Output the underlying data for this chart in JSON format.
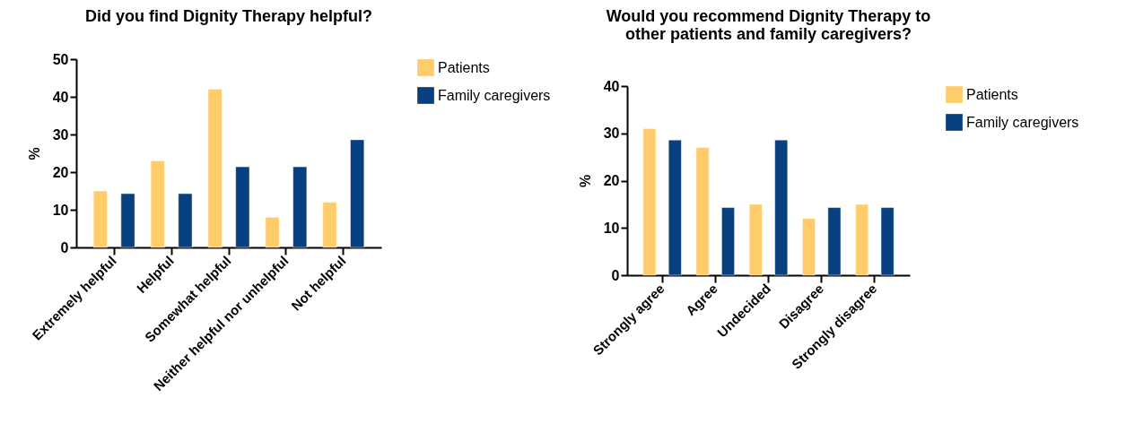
{
  "chart_data": [
    {
      "type": "bar",
      "title": "Did you find Dignity Therapy helpful?",
      "ylabel": "%",
      "categories": [
        "Extremely helpful",
        "Helpful",
        "Somewhat helpful",
        "Neither helpful nor unhelpful",
        "Not helpful"
      ],
      "series": [
        {
          "name": "Patients",
          "color": "#fecc6b",
          "values": [
            15,
            23,
            42,
            8,
            12
          ]
        },
        {
          "name": "Family caregivers",
          "color": "#083f7f",
          "values": [
            14.3,
            14.3,
            21.4,
            21.4,
            28.6
          ]
        }
      ],
      "ylim": [
        0,
        50
      ],
      "yticks": [
        0,
        10,
        20,
        30,
        40,
        50
      ],
      "grid": false,
      "legend": "right"
    },
    {
      "type": "bar",
      "title": "Would you recommend Dignity Therapy to other patients and family caregivers?",
      "ylabel": "%",
      "categories": [
        "Strongly agree",
        "Agree",
        "Undecided",
        "Disagree",
        "Strongly disagree"
      ],
      "series": [
        {
          "name": "Patients",
          "color": "#fecc6b",
          "values": [
            31,
            27,
            15,
            12,
            15
          ]
        },
        {
          "name": "Family caregivers",
          "color": "#083f7f",
          "values": [
            28.6,
            14.3,
            28.6,
            14.3,
            14.3
          ]
        }
      ],
      "ylim": [
        0,
        40
      ],
      "yticks": [
        0,
        10,
        20,
        30,
        40
      ],
      "grid": false,
      "legend": "right"
    }
  ]
}
